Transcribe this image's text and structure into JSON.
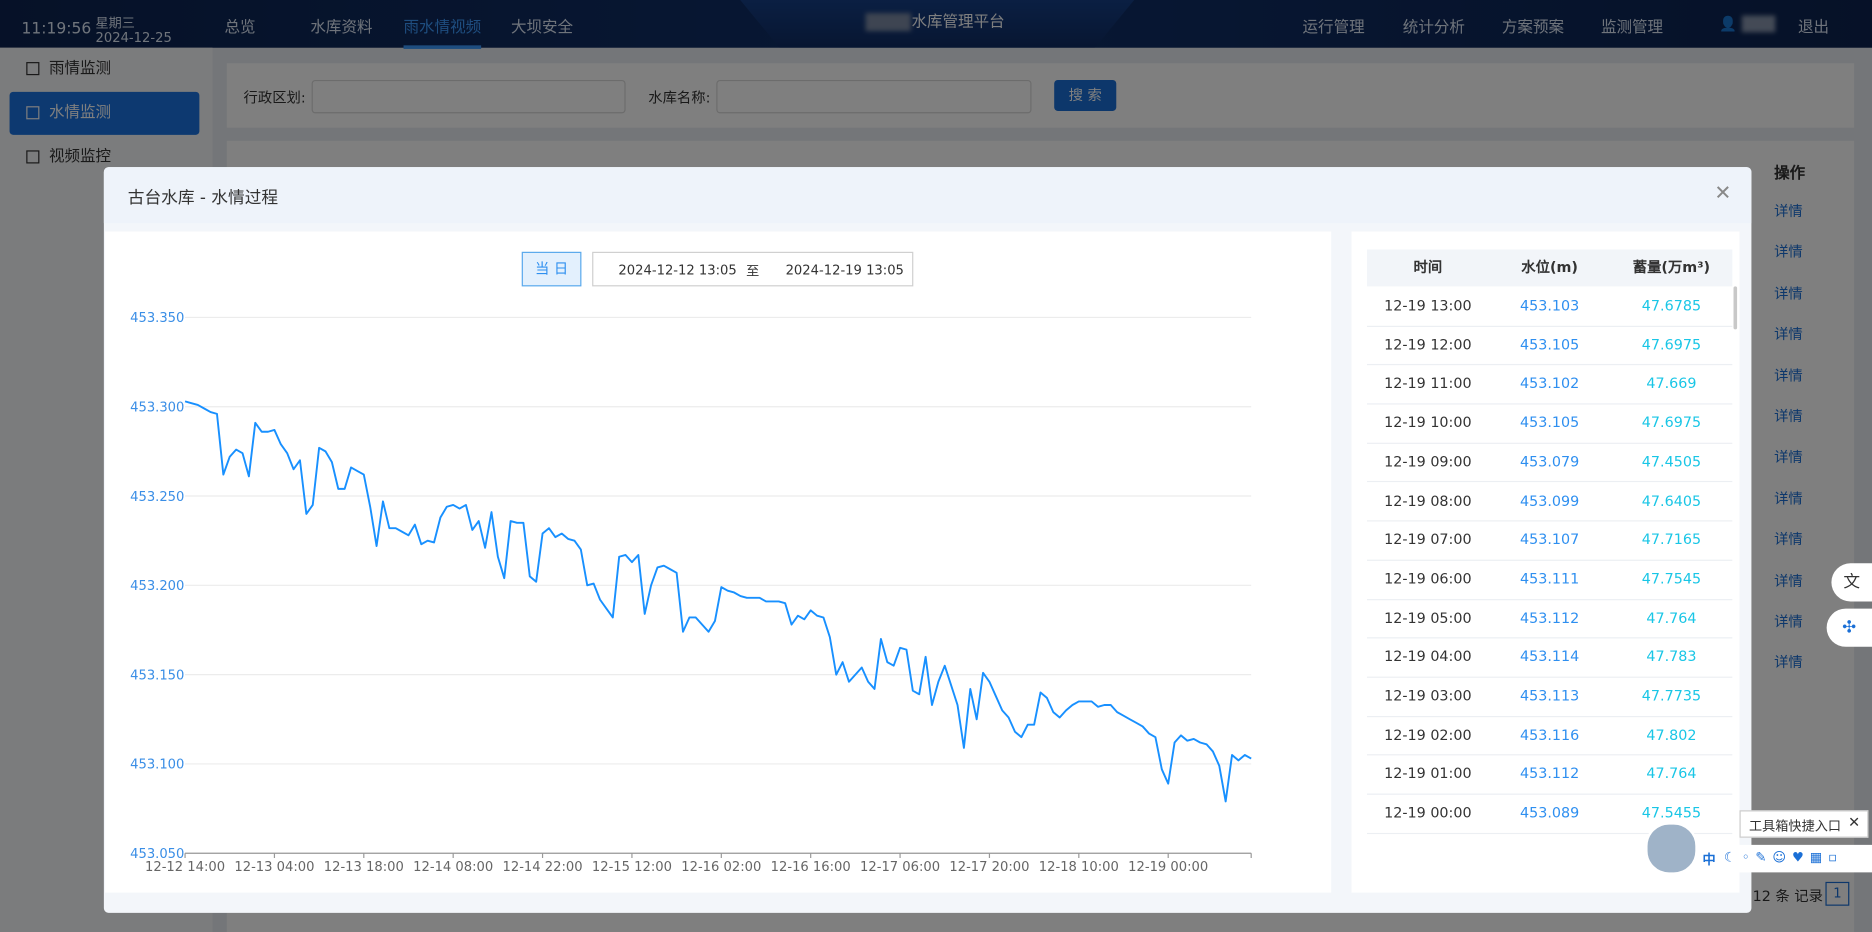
{
  "header": {
    "time": "11:19:56",
    "weekday": "星期三",
    "date": "2024-12-25",
    "nav_left": [
      "总览",
      "水库资料",
      "雨水情视频",
      "大坝安全"
    ],
    "platform_title": "水库管理平台",
    "nav_right": [
      "运行管理",
      "统计分析",
      "方案预案",
      "监测管理"
    ],
    "logout": "退出"
  },
  "sidebar": [
    "雨情监测",
    "水情监测",
    "视频监控"
  ],
  "search": {
    "region_label": "行政区划:",
    "name_label": "水库名称:",
    "button": "搜 索"
  },
  "list": {
    "action_header": "操作",
    "actions": [
      "详情",
      "详情",
      "详情",
      "详情",
      "详情",
      "详情",
      "详情",
      "详情",
      "详情",
      "详情",
      "详情",
      "详情"
    ],
    "total": "12 条 记录",
    "page": "1"
  },
  "modal": {
    "title": "古台水库 - 水情过程",
    "today_button": "当 日",
    "start": "2024-12-12 13:05",
    "separator": "至",
    "end": "2024-12-19 13:05",
    "table": {
      "headers": [
        "时间",
        "水位(m)",
        "蓄量(万m³)"
      ],
      "rows": [
        [
          "12-19 13:00",
          "453.103",
          "47.6785"
        ],
        [
          "12-19 12:00",
          "453.105",
          "47.6975"
        ],
        [
          "12-19 11:00",
          "453.102",
          "47.669"
        ],
        [
          "12-19 10:00",
          "453.105",
          "47.6975"
        ],
        [
          "12-19 09:00",
          "453.079",
          "47.4505"
        ],
        [
          "12-19 08:00",
          "453.099",
          "47.6405"
        ],
        [
          "12-19 07:00",
          "453.107",
          "47.7165"
        ],
        [
          "12-19 06:00",
          "453.111",
          "47.7545"
        ],
        [
          "12-19 05:00",
          "453.112",
          "47.764"
        ],
        [
          "12-19 04:00",
          "453.114",
          "47.783"
        ],
        [
          "12-19 03:00",
          "453.113",
          "47.7735"
        ],
        [
          "12-19 02:00",
          "453.116",
          "47.802"
        ],
        [
          "12-19 01:00",
          "453.112",
          "47.764"
        ],
        [
          "12-19 00:00",
          "453.089",
          "47.5455"
        ]
      ]
    }
  },
  "toolbox": {
    "tooltip": "工具箱快捷入口",
    "lang": "中"
  },
  "chart_data": {
    "type": "line",
    "color": "#1890ff",
    "grid": true,
    "categories": [
      "12-12 14:00",
      null,
      null,
      null,
      null,
      null,
      null,
      null,
      null,
      null,
      null,
      null,
      null,
      null,
      "12-13 04:00",
      null,
      null,
      null,
      null,
      null,
      null,
      null,
      null,
      null,
      null,
      null,
      null,
      null,
      "12-13 18:00",
      null,
      null,
      null,
      null,
      null,
      null,
      null,
      null,
      null,
      null,
      null,
      null,
      null,
      "12-14 08:00",
      null,
      null,
      null,
      null,
      null,
      null,
      null,
      null,
      null,
      null,
      null,
      null,
      null,
      "12-14 22:00",
      null,
      null,
      null,
      null,
      null,
      null,
      null,
      null,
      null,
      null,
      null,
      null,
      null,
      "12-15 12:00",
      null,
      null,
      null,
      null,
      null,
      null,
      null,
      null,
      null,
      null,
      null,
      null,
      null,
      "12-16 02:00",
      null,
      null,
      null,
      null,
      null,
      null,
      null,
      null,
      null,
      null,
      null,
      null,
      null,
      "12-16 16:00",
      null,
      null,
      null,
      null,
      null,
      null,
      null,
      null,
      null,
      null,
      null,
      null,
      null,
      "12-17 06:00",
      null,
      null,
      null,
      null,
      null,
      null,
      null,
      null,
      null,
      null,
      null,
      null,
      null,
      "12-17 20:00",
      null,
      null,
      null,
      null,
      null,
      null,
      null,
      null,
      null,
      null,
      null,
      null,
      null,
      "12-18 10:00",
      null,
      null,
      null,
      null,
      null,
      null,
      null,
      null,
      null,
      null,
      null,
      null,
      null,
      "12-19 00:00",
      null,
      null,
      null,
      null,
      null,
      null,
      null,
      null,
      null,
      null,
      null,
      null,
      null
    ],
    "values": [
      453.303,
      453.302,
      453.301,
      453.299,
      453.297,
      453.296,
      453.262,
      453.272,
      453.276,
      453.274,
      453.261,
      453.291,
      453.286,
      453.286,
      453.287,
      453.279,
      453.274,
      453.265,
      453.27,
      453.24,
      453.245,
      453.277,
      453.275,
      453.269,
      453.254,
      453.254,
      453.266,
      453.264,
      453.262,
      453.244,
      453.222,
      453.247,
      453.232,
      453.232,
      453.23,
      453.228,
      453.234,
      453.223,
      453.225,
      453.224,
      453.238,
      453.244,
      453.245,
      453.243,
      453.245,
      453.231,
      453.236,
      453.221,
      453.241,
      453.216,
      453.204,
      453.236,
      453.235,
      453.235,
      453.205,
      453.202,
      453.229,
      453.232,
      453.227,
      453.229,
      453.226,
      453.225,
      453.22,
      453.2,
      453.201,
      453.192,
      453.187,
      453.182,
      453.216,
      453.217,
      453.213,
      453.217,
      453.184,
      453.2,
      453.21,
      453.211,
      453.209,
      453.207,
      453.174,
      453.182,
      453.182,
      453.178,
      453.174,
      453.18,
      453.199,
      453.197,
      453.196,
      453.194,
      453.193,
      453.193,
      453.193,
      453.191,
      453.191,
      453.191,
      453.19,
      453.178,
      453.183,
      453.181,
      453.186,
      453.183,
      453.182,
      453.171,
      453.15,
      453.157,
      453.146,
      453.15,
      453.154,
      453.146,
      453.142,
      453.17,
      453.157,
      453.155,
      453.165,
      453.164,
      453.141,
      453.139,
      453.16,
      453.133,
      453.146,
      453.155,
      453.144,
      453.133,
      453.109,
      453.142,
      453.125,
      453.151,
      453.146,
      453.138,
      453.13,
      453.126,
      453.118,
      453.115,
      453.122,
      453.122,
      453.14,
      453.137,
      453.129,
      453.126,
      453.13,
      453.133,
      453.135,
      453.135,
      453.135,
      453.132,
      453.133,
      453.133,
      453.129,
      453.127,
      453.125,
      453.123,
      453.121,
      453.117,
      453.115,
      453.097,
      453.089,
      453.112,
      453.116,
      453.113,
      453.114,
      453.112,
      453.111,
      453.107,
      453.099,
      453.079,
      453.105,
      453.102,
      453.105,
      453.103
    ],
    "ylim": [
      453.05,
      453.35
    ],
    "yticks": [
      {
        "value": 453.05,
        "label": "453.050"
      },
      {
        "value": 453.1,
        "label": "453.100"
      },
      {
        "value": 453.15,
        "label": "453.150"
      },
      {
        "value": 453.2,
        "label": "453.200"
      },
      {
        "value": 453.25,
        "label": "453.250"
      },
      {
        "value": 453.3,
        "label": "453.300"
      },
      {
        "value": 453.35,
        "label": "453.350"
      }
    ]
  }
}
